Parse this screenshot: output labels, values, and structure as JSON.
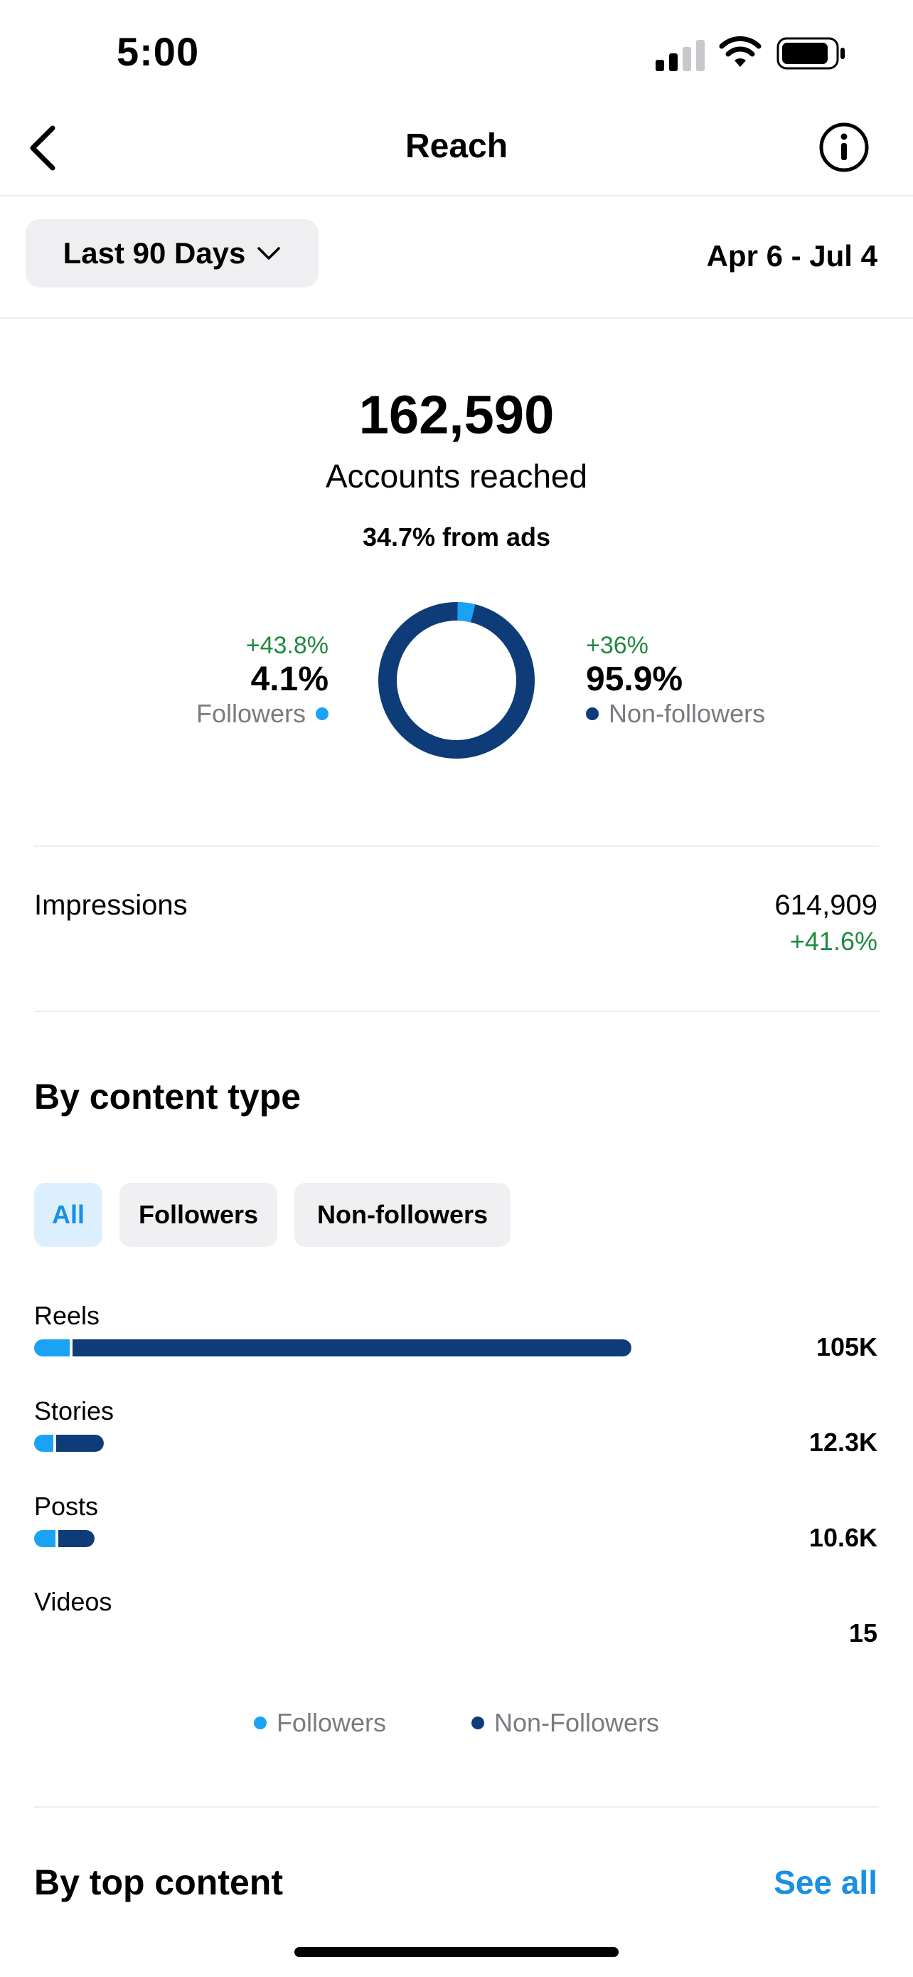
{
  "status_bar": {
    "time": "5:00"
  },
  "nav": {
    "title": "Reach"
  },
  "filter": {
    "range_label": "Last 90 Days",
    "date_range": "Apr 6 - Jul 4"
  },
  "summary": {
    "accounts_reached": "162,590",
    "accounts_label": "Accounts reached",
    "ads_line": "34.7% from ads",
    "followers": {
      "change": "+43.8%",
      "value": "4.1%",
      "label": "Followers",
      "fraction": 0.041,
      "color": "#1aa3f5"
    },
    "non_followers": {
      "change": "+36%",
      "value": "95.9%",
      "label": "Non-followers",
      "fraction": 0.959,
      "color": "#0d3c78"
    }
  },
  "impressions": {
    "label": "Impressions",
    "value": "614,909",
    "change": "+41.6%"
  },
  "content_type": {
    "title": "By content type",
    "chips": [
      {
        "label": "All",
        "active": true
      },
      {
        "label": "Followers",
        "active": false
      },
      {
        "label": "Non-followers",
        "active": false
      }
    ],
    "rows": [
      {
        "label": "Reels",
        "value": "105K",
        "total": 105000,
        "followers_share": 0.06
      },
      {
        "label": "Stories",
        "value": "12.3K",
        "total": 12300,
        "followers_share": 0.27
      },
      {
        "label": "Posts",
        "value": "10.6K",
        "total": 10600,
        "followers_share": 0.35
      },
      {
        "label": "Videos",
        "value": "15",
        "total": 15,
        "followers_share": 0
      }
    ],
    "legend": {
      "followers": "Followers",
      "non_followers": "Non-Followers"
    }
  },
  "top_content": {
    "title": "By top content",
    "see_all": "See all"
  }
}
